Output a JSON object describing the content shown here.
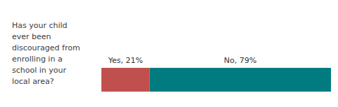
{
  "chart_data": {
    "type": "bar",
    "orientation": "horizontal",
    "stacked": true,
    "title": "Has your child\never been\ndiscouraged from\nenrolling in a\nschool in your\nlocal area?",
    "categories": [
      null
    ],
    "series": [
      {
        "name": "Yes",
        "color": "#c0504d",
        "values": [
          21
        ],
        "value_labels": [
          "Yes, 21%"
        ]
      },
      {
        "name": "No",
        "color": "#007b80",
        "values": [
          79
        ],
        "value_labels": [
          "No, 79%"
        ]
      }
    ],
    "xlim": [
      0,
      100
    ],
    "data_labels": true,
    "tick_labels": false,
    "grid": false
  }
}
